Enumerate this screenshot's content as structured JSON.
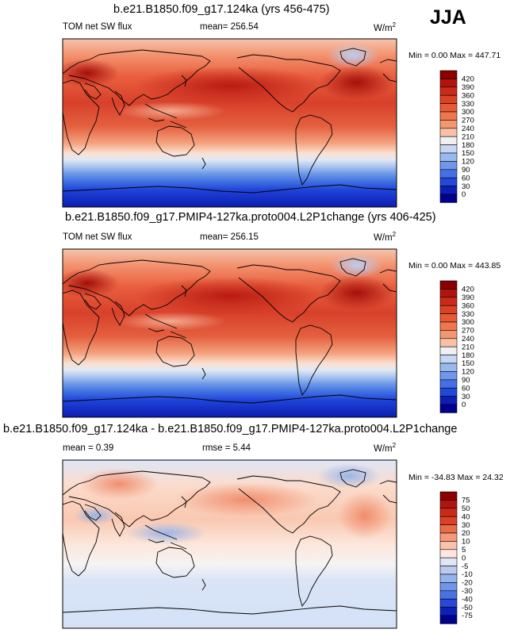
{
  "season": "JJA",
  "panels": [
    {
      "title": "b.e21.B1850.f09_g17.124ka (yrs 456-475)",
      "left_label": "TOM net SW flux",
      "center_label": "mean= 256.54",
      "units": "W/m",
      "units_sup": "2",
      "minmax": "Min =   0.00 Max = 447.71",
      "colorbar_levels": [
        "420",
        "390",
        "360",
        "330",
        "300",
        "270",
        "240",
        "210",
        "180",
        "150",
        "120",
        "90",
        "60",
        "30",
        "0"
      ]
    },
    {
      "title": "b.e21.B1850.f09_g17.PMIP4-127ka.proto004.L2P1change (yrs 406-425)",
      "left_label": "TOM net SW flux",
      "center_label": "mean= 256.15",
      "units": "W/m",
      "units_sup": "2",
      "minmax": "Min =   0.00 Max = 443.85",
      "colorbar_levels": [
        "420",
        "390",
        "360",
        "330",
        "300",
        "270",
        "240",
        "210",
        "180",
        "150",
        "120",
        "90",
        "60",
        "30",
        "0"
      ]
    },
    {
      "title": "b.e21.B1850.f09_g17.124ka - b.e21.B1850.f09_g17.PMIP4-127ka.proto004.L2P1change",
      "left_label": "mean =   0.39",
      "center_label": "rmse =   5.44",
      "units": "W/m",
      "units_sup": "2",
      "minmax": "Min = -34.83 Max =  24.32",
      "colorbar_levels": [
        "75",
        "50",
        "40",
        "30",
        "20",
        "10",
        "5",
        "0",
        "-5",
        "-10",
        "-20",
        "-30",
        "-40",
        "-50",
        "-75"
      ]
    }
  ],
  "chart_data": [
    {
      "type": "heatmap",
      "title": "b.e21.B1850.f09_g17.124ka (yrs 456-475)",
      "variable": "TOM net SW flux",
      "units": "W/m2",
      "mean": 256.54,
      "min": 0.0,
      "max": 447.71,
      "levels": [
        0,
        30,
        60,
        90,
        120,
        150,
        180,
        210,
        240,
        270,
        300,
        330,
        360,
        390,
        420
      ]
    },
    {
      "type": "heatmap",
      "title": "b.e21.B1850.f09_g17.PMIP4-127ka.proto004.L2P1change (yrs 406-425)",
      "variable": "TOM net SW flux",
      "units": "W/m2",
      "mean": 256.15,
      "min": 0.0,
      "max": 443.85,
      "levels": [
        0,
        30,
        60,
        90,
        120,
        150,
        180,
        210,
        240,
        270,
        300,
        330,
        360,
        390,
        420
      ]
    },
    {
      "type": "heatmap",
      "title": "b.e21.B1850.f09_g17.124ka - b.e21.B1850.f09_g17.PMIP4-127ka.proto004.L2P1change",
      "units": "W/m2",
      "mean": 0.39,
      "rmse": 5.44,
      "min": -34.83,
      "max": 24.32,
      "levels": [
        -75,
        -50,
        -40,
        -30,
        -20,
        -10,
        -5,
        0,
        5,
        10,
        20,
        30,
        40,
        50,
        75
      ]
    }
  ]
}
